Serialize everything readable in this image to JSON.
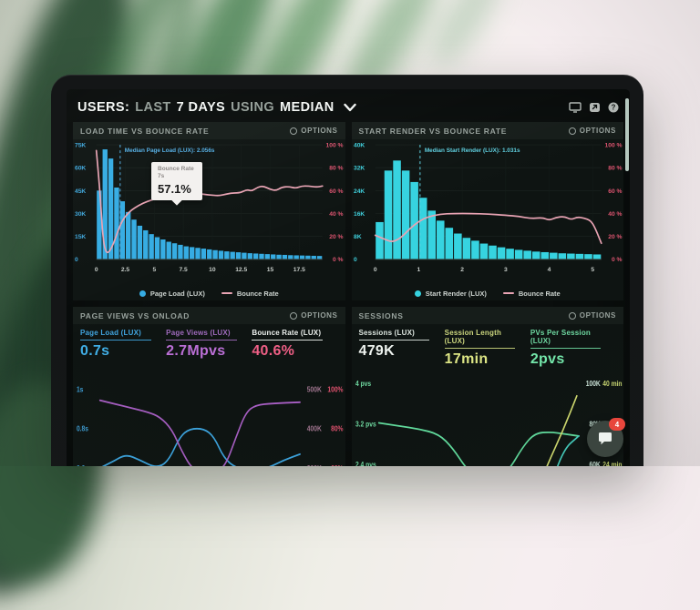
{
  "header": {
    "segments": [
      {
        "text": "USERS:"
      },
      {
        "text": "LAST"
      },
      {
        "text": "7 DAYS"
      },
      {
        "text": "USING"
      },
      {
        "text": "MEDIAN"
      }
    ],
    "icons": [
      "display-icon",
      "share-icon",
      "help-icon"
    ]
  },
  "panels": {
    "load_time": {
      "title": "LOAD TIME VS BOUNCE RATE",
      "options": "OPTIONS"
    },
    "start_render": {
      "title": "START RENDER VS BOUNCE RATE",
      "options": "OPTIONS"
    },
    "page_views": {
      "title": "PAGE VIEWS VS ONLOAD",
      "options": "OPTIONS",
      "metrics": [
        {
          "label": "Page Load (LUX)",
          "value": "0.7s",
          "color": "#41b0e8",
          "label_color": "#41a5e0"
        },
        {
          "label": "Page Views (LUX)",
          "value": "2.7Mpvs",
          "color": "#bb6fd6",
          "label_color": "#a06bbd"
        },
        {
          "label": "Bounce Rate (LUX)",
          "value": "40.6%",
          "color": "#ef5f85",
          "label_color": "#eef2ef"
        }
      ]
    },
    "sessions": {
      "title": "SESSIONS",
      "options": "OPTIONS",
      "metrics": [
        {
          "label": "Sessions (LUX)",
          "value": "479K",
          "color": "#eef3ef",
          "label_color": "#dde6e0"
        },
        {
          "label": "Session Length (LUX)",
          "value": "17min",
          "color": "#dde685",
          "label_color": "#ccd67e"
        },
        {
          "label": "PVs Per Session (LUX)",
          "value": "2pvs",
          "color": "#74e8ab",
          "label_color": "#6fd9a2"
        }
      ]
    }
  },
  "chat": {
    "badge": "4"
  },
  "chart_data": [
    {
      "type": "bar",
      "subtype": "histogram_with_line",
      "container": "chart-load-time",
      "legend_host": "legend-load-time",
      "title": "LOAD TIME VS BOUNCE RATE",
      "x_max": 19.5,
      "x_ticks": [
        0,
        2.5,
        5,
        7.5,
        10,
        12.5,
        15,
        17.5
      ],
      "left_axis": {
        "labels": [
          "75K",
          "60K",
          "45K",
          "30K",
          "15K",
          "0"
        ],
        "max_k": 75,
        "color": "#3fa7dc"
      },
      "right_axis": {
        "labels": [
          "100 %",
          "80 %",
          "60 %",
          "40 %",
          "20 %",
          "0 %"
        ],
        "max_pct": 100,
        "color": "#dd5470"
      },
      "bars": {
        "name": "Page Load (LUX)",
        "color": "#35ace3",
        "bin_width_s": 0.5,
        "values_k": [
          45,
          72,
          66,
          47,
          38,
          31,
          26,
          22,
          19,
          16.5,
          14.5,
          13,
          11.5,
          10.5,
          9.5,
          8.5,
          8,
          7.5,
          7,
          6.5,
          6,
          5.6,
          5.2,
          4.9,
          4.6,
          4.3,
          4,
          3.8,
          3.6,
          3.4,
          3.2,
          3,
          2.9,
          2.7,
          2.6,
          2.5,
          2.4,
          2.3,
          2.2
        ]
      },
      "line": {
        "name": "Bounce Rate",
        "color": "#e8a3b3",
        "points": [
          [
            0,
            95
          ],
          [
            0.3,
            62
          ],
          [
            0.55,
            20
          ],
          [
            0.8,
            6
          ],
          [
            1.1,
            6
          ],
          [
            1.5,
            14
          ],
          [
            1.9,
            26
          ],
          [
            2.3,
            35
          ],
          [
            2.8,
            41
          ],
          [
            3.3,
            45
          ],
          [
            4,
            49
          ],
          [
            4.8,
            52
          ],
          [
            5.6,
            54
          ],
          [
            6.4,
            56
          ],
          [
            7,
            57.1
          ],
          [
            7.6,
            57
          ],
          [
            8.2,
            58
          ],
          [
            8.8,
            57.5
          ],
          [
            9.4,
            56.5
          ],
          [
            10,
            56
          ],
          [
            10.6,
            55.5
          ],
          [
            11.2,
            57
          ],
          [
            11.8,
            58
          ],
          [
            12.4,
            58
          ],
          [
            13,
            61
          ],
          [
            13.4,
            59.5
          ],
          [
            13.9,
            63
          ],
          [
            14.4,
            64
          ],
          [
            15,
            61
          ],
          [
            15.5,
            60
          ],
          [
            16,
            63
          ],
          [
            16.6,
            63.5
          ],
          [
            17.2,
            62
          ],
          [
            17.7,
            64
          ],
          [
            18.3,
            64
          ],
          [
            19,
            63
          ],
          [
            19.5,
            64
          ]
        ]
      },
      "median": {
        "x_s": 2.056,
        "label": "Median Page Load (LUX): 2.056s",
        "color": "#54aee3"
      },
      "tooltip": {
        "title": "Bounce Rate",
        "x_label": "7s",
        "value": "57.1%",
        "anchor": [
          7,
          57.1
        ]
      },
      "legend": [
        {
          "marker": "dot",
          "color": "#35ace3",
          "label": "Page Load (LUX)"
        },
        {
          "marker": "line",
          "color": "#e8a3b3",
          "label": "Bounce Rate"
        }
      ]
    },
    {
      "type": "bar",
      "subtype": "histogram_with_line",
      "container": "chart-start-render",
      "legend_host": "legend-start-render",
      "title": "START RENDER VS BOUNCE RATE",
      "x_max": 5.2,
      "x_ticks": [
        0,
        1,
        2,
        3,
        4,
        5
      ],
      "left_axis": {
        "labels": [
          "40K",
          "32K",
          "24K",
          "16K",
          "8K",
          "0"
        ],
        "max_k": 40,
        "color": "#3fcfdc"
      },
      "right_axis": {
        "labels": [
          "100 %",
          "80 %",
          "60 %",
          "40 %",
          "20 %",
          "0 %"
        ],
        "max_pct": 100,
        "color": "#dd5470"
      },
      "bars": {
        "name": "Start Render (LUX)",
        "color": "#36d3e0",
        "bin_width_s": 0.2,
        "values_k": [
          13,
          31,
          34.5,
          31,
          27,
          21.5,
          17,
          13.5,
          11,
          9,
          7.5,
          6.5,
          5.5,
          4.8,
          4.2,
          3.7,
          3.3,
          3,
          2.7,
          2.5,
          2.3,
          2.1,
          2,
          1.9,
          1.8,
          1.7
        ]
      },
      "line": {
        "name": "Bounce Rate",
        "color": "#e8a3b3",
        "points": [
          [
            0,
            21
          ],
          [
            0.25,
            17
          ],
          [
            0.4,
            15
          ],
          [
            0.6,
            19
          ],
          [
            0.8,
            27
          ],
          [
            1.0,
            33
          ],
          [
            1.2,
            37
          ],
          [
            1.5,
            39.5
          ],
          [
            1.8,
            40
          ],
          [
            2.2,
            40
          ],
          [
            2.6,
            39.5
          ],
          [
            3.0,
            38.5
          ],
          [
            3.3,
            37.5
          ],
          [
            3.6,
            35.5
          ],
          [
            3.85,
            36.5
          ],
          [
            4.0,
            34
          ],
          [
            4.15,
            36.5
          ],
          [
            4.35,
            37.5
          ],
          [
            4.5,
            34.5
          ],
          [
            4.65,
            37
          ],
          [
            4.8,
            36
          ],
          [
            4.95,
            34
          ],
          [
            5.05,
            28
          ],
          [
            5.2,
            14
          ]
        ]
      },
      "median": {
        "x_s": 1.031,
        "label": "Median Start Render (LUX): 1.031s",
        "color": "#5fd0e0"
      },
      "legend": [
        {
          "marker": "dot",
          "color": "#36d3e0",
          "label": "Start Render (LUX)"
        },
        {
          "marker": "line",
          "color": "#e8a3b3",
          "label": "Bounce Rate"
        }
      ]
    },
    {
      "type": "line",
      "subtype": "multi_line",
      "container": "chart-onload",
      "title": "PAGE VIEWS VS ONLOAD",
      "left_axis": {
        "color": "#3f9fd6",
        "range": [
          0.33,
          1.06
        ],
        "ticks": [
          {
            "label": "1s",
            "v": 1
          },
          {
            "label": "0.8s",
            "v": 0.8
          },
          {
            "label": "0.6s",
            "v": 0.6
          },
          {
            "label": "0.4s",
            "v": 0.4
          }
        ]
      },
      "right_axis": {
        "columns": [
          {
            "color": "#a0758f",
            "labels": [
              "500K",
              "400K",
              "300K",
              "200K"
            ]
          },
          {
            "color": "#e0516e",
            "labels": [
              "100%",
              "80%",
              "60%",
              "40%"
            ]
          }
        ]
      },
      "series": [
        {
          "name": "Page Load (LUX)",
          "unit": "s",
          "color": "#3da5e0",
          "range": [
            0.33,
            1.06
          ],
          "points": [
            [
              0,
              0.6
            ],
            [
              0.06,
              0.63
            ],
            [
              0.13,
              0.67
            ],
            [
              0.2,
              0.64
            ],
            [
              0.28,
              0.6
            ],
            [
              0.34,
              0.63
            ],
            [
              0.4,
              0.76
            ],
            [
              0.45,
              0.8
            ],
            [
              0.52,
              0.8
            ],
            [
              0.57,
              0.76
            ],
            [
              0.62,
              0.65
            ],
            [
              0.68,
              0.6
            ],
            [
              0.76,
              0.585
            ],
            [
              0.84,
              0.6
            ],
            [
              0.92,
              0.64
            ],
            [
              1,
              0.67
            ]
          ]
        },
        {
          "name": "Page Views (LUX)",
          "unit": "K",
          "color": "#a85fc4",
          "range": [
            175,
            540
          ],
          "points": [
            [
              0,
              482
            ],
            [
              0.08,
              472
            ],
            [
              0.16,
              462
            ],
            [
              0.24,
              452
            ],
            [
              0.3,
              440
            ],
            [
              0.36,
              408
            ],
            [
              0.41,
              352
            ],
            [
              0.46,
              308
            ],
            [
              0.52,
              296
            ],
            [
              0.58,
              298
            ],
            [
              0.63,
              318
            ],
            [
              0.68,
              388
            ],
            [
              0.73,
              452
            ],
            [
              0.78,
              470
            ],
            [
              0.86,
              474
            ],
            [
              1,
              477
            ]
          ]
        },
        {
          "name": "Bounce Rate (LUX)",
          "unit": "%",
          "color": "#d987a0",
          "range": [
            35,
            108
          ],
          "points": [
            [
              0,
              41.5
            ],
            [
              0.1,
              40.5
            ],
            [
              0.2,
              40
            ],
            [
              0.3,
              41
            ],
            [
              0.4,
              43.5
            ],
            [
              0.5,
              46
            ],
            [
              0.56,
              47
            ],
            [
              0.63,
              46
            ],
            [
              0.72,
              43
            ],
            [
              0.8,
              40
            ],
            [
              0.9,
              36.5
            ],
            [
              1,
              33.5
            ]
          ]
        }
      ]
    },
    {
      "type": "line",
      "subtype": "multi_line",
      "container": "chart-sessions",
      "title": "SESSIONS",
      "left_axis": {
        "color": "#6fd9a0",
        "range": [
          1.28,
          4.1
        ],
        "ticks": [
          {
            "label": "4 pvs",
            "v": 4
          },
          {
            "label": "3.2 pvs",
            "v": 3.2
          },
          {
            "label": "2.4 pvs",
            "v": 2.4
          },
          {
            "label": "1.6 pvs",
            "v": 1.6
          }
        ]
      },
      "right_axis": {
        "columns": [
          {
            "color": "#cfe8dc",
            "labels": [
              "100K",
              "80K",
              "60K",
              "40K"
            ]
          },
          {
            "color": "#cddb74",
            "labels": [
              "40 min",
              "32 min",
              "24 min",
              ""
            ]
          }
        ]
      },
      "series": [
        {
          "name": "PVs Per Session (LUX)",
          "unit": "pvs",
          "color": "#62dd9e",
          "range": [
            1.28,
            4.1
          ],
          "points": [
            [
              0,
              3.22
            ],
            [
              0.1,
              3.16
            ],
            [
              0.2,
              3.1
            ],
            [
              0.3,
              3.0
            ],
            [
              0.37,
              2.72
            ],
            [
              0.44,
              2.3
            ],
            [
              0.5,
              2.14
            ],
            [
              0.58,
              2.1
            ],
            [
              0.65,
              2.28
            ],
            [
              0.72,
              2.75
            ],
            [
              0.78,
              3.02
            ],
            [
              0.86,
              3.04
            ],
            [
              0.93,
              3.0
            ],
            [
              1,
              2.96
            ]
          ]
        },
        {
          "name": "Sessions (LUX)",
          "unit": "K",
          "color": "#46cfc0",
          "range": [
            32.5,
            103.75
          ],
          "points": [
            [
              0,
              53
            ],
            [
              0.3,
              53
            ],
            [
              0.42,
              52.5
            ],
            [
              0.52,
              49
            ],
            [
              0.6,
              41
            ],
            [
              0.66,
              30
            ],
            [
              0.71,
              26
            ],
            [
              0.77,
              28
            ],
            [
              0.84,
              44
            ],
            [
              0.92,
              68
            ],
            [
              1,
              75
            ]
          ]
        },
        {
          "name": "Session Length (LUX)",
          "unit": "min",
          "color": "#d3dd70",
          "range": [
            13,
            41.5
          ],
          "points": [
            [
              0,
              17.8
            ],
            [
              0.1,
              17.2
            ],
            [
              0.2,
              16.2
            ],
            [
              0.3,
              14.5
            ],
            [
              0.38,
              12
            ],
            [
              0.45,
              9.5
            ],
            [
              0.52,
              7.8
            ],
            [
              0.6,
              8.0
            ],
            [
              0.68,
              10.5
            ],
            [
              0.76,
              16
            ],
            [
              0.84,
              24
            ],
            [
              0.92,
              31
            ],
            [
              0.99,
              38
            ]
          ]
        }
      ]
    }
  ]
}
